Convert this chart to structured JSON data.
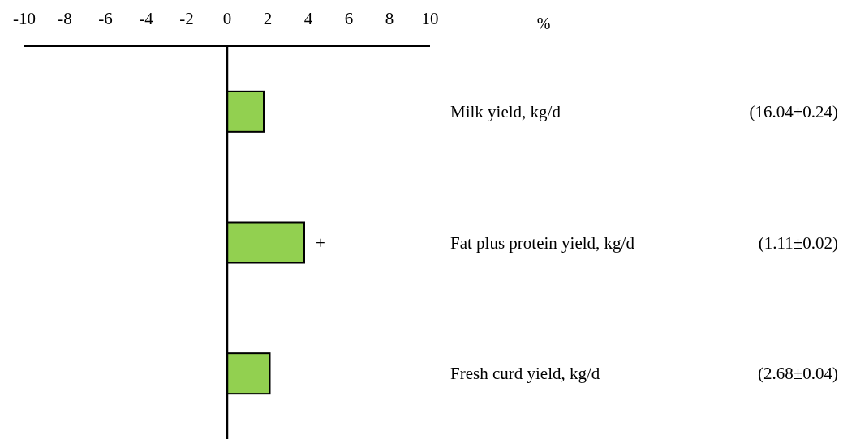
{
  "chart_data": {
    "type": "bar",
    "orientation": "horizontal",
    "xlabel": "%",
    "categories": [
      "Milk yield, kg/d",
      "Fat plus protein yield, kg/d",
      "Fresh curd yield, kg/d"
    ],
    "values": [
      1.8,
      3.8,
      2.1
    ],
    "color": "#92d050",
    "xlim": [
      -10,
      10
    ],
    "xticks": [
      -10,
      -8,
      -6,
      -4,
      -2,
      0,
      2,
      4,
      6,
      8,
      10
    ],
    "annotations": [
      "(16.04±0.24)",
      "(1.11±0.02)",
      "(2.68±0.04)",
      "+"
    ]
  }
}
